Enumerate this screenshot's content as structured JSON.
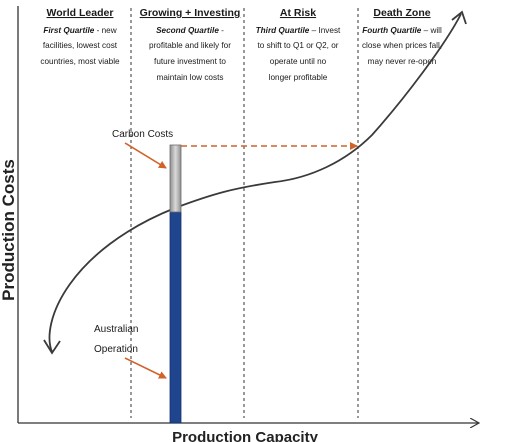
{
  "axes": {
    "y_label": "Production Costs",
    "x_label": "Production Capacity"
  },
  "quartiles": [
    {
      "title": "World Leader",
      "lead": "First Quartile",
      "lines": [
        "- new",
        "facilities, lowest cost",
        "countries, most viable"
      ]
    },
    {
      "title": "Growing + Investing",
      "lead": "Second Quartile",
      "lines": [
        "-",
        "profitable and likely for",
        "future investment to",
        "maintain low costs"
      ]
    },
    {
      "title": "At Risk",
      "lead": "Third Quartile",
      "lines": [
        "– Invest",
        "to shift to Q1 or Q2, or",
        "operate until no",
        "longer profitable"
      ]
    },
    {
      "title": "Death Zone",
      "lead": "Fourth Quartile",
      "lines": [
        "– will",
        "close when prices fall,",
        "may never re-open"
      ]
    }
  ],
  "annotations": {
    "carbon_costs": "Carbon Costs",
    "australian_line1": "Australian",
    "australian_line2": "Operation"
  },
  "colors": {
    "carbon_bar": "#b9b9b9",
    "operation_bar": "#20458f",
    "arrow": "#d0622a",
    "curve": "#3a3a3a"
  }
}
